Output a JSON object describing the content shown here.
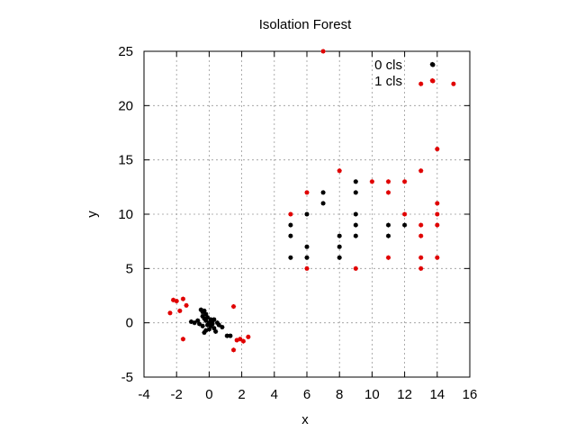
{
  "chart_data": {
    "type": "scatter",
    "title": "Isolation Forest",
    "xlabel": "x",
    "ylabel": "y",
    "xlim": [
      -4,
      16
    ],
    "ylim": [
      -5,
      25
    ],
    "xticks": [
      -4,
      -2,
      0,
      2,
      4,
      6,
      8,
      10,
      12,
      14,
      16
    ],
    "yticks": [
      -5,
      0,
      5,
      10,
      15,
      20,
      25
    ],
    "grid": true,
    "legend_position": "top-right",
    "series": [
      {
        "name": "0 cls",
        "color": "#000000",
        "points": [
          [
            -1.1,
            0.1
          ],
          [
            -0.9,
            0.0
          ],
          [
            -0.7,
            0.2
          ],
          [
            -0.6,
            -0.1
          ],
          [
            -0.5,
            1.2
          ],
          [
            -0.4,
            1.0
          ],
          [
            -0.4,
            0.6
          ],
          [
            -0.3,
            0.4
          ],
          [
            -0.3,
            1.1
          ],
          [
            -0.2,
            0.8
          ],
          [
            -0.2,
            0.2
          ],
          [
            -0.1,
            -0.2
          ],
          [
            -0.1,
            0.5
          ],
          [
            0.0,
            0.0
          ],
          [
            0.0,
            -0.6
          ],
          [
            0.1,
            0.3
          ],
          [
            0.1,
            -0.3
          ],
          [
            0.2,
            0.1
          ],
          [
            0.3,
            -0.5
          ],
          [
            0.3,
            0.3
          ],
          [
            0.4,
            -0.8
          ],
          [
            0.5,
            0.0
          ],
          [
            0.6,
            -0.2
          ],
          [
            0.8,
            -0.4
          ],
          [
            -0.2,
            -0.7
          ],
          [
            -0.4,
            -0.3
          ],
          [
            0.2,
            -0.1
          ],
          [
            1.1,
            -1.2
          ],
          [
            1.3,
            -1.2
          ],
          [
            -0.3,
            -0.9
          ],
          [
            5,
            6
          ],
          [
            5,
            8
          ],
          [
            5,
            9
          ],
          [
            6,
            6
          ],
          [
            6,
            7
          ],
          [
            6,
            10
          ],
          [
            7,
            11
          ],
          [
            7,
            12
          ],
          [
            8,
            6
          ],
          [
            8,
            7
          ],
          [
            8,
            8
          ],
          [
            9,
            8
          ],
          [
            9,
            9
          ],
          [
            9,
            10
          ],
          [
            9,
            12
          ],
          [
            9,
            13
          ],
          [
            11,
            8
          ],
          [
            11,
            9
          ],
          [
            12,
            9
          ],
          [
            13.7,
            23.8
          ]
        ]
      },
      {
        "name": "1 cls",
        "color": "#e00000",
        "points": [
          [
            -2.4,
            0.9
          ],
          [
            -2.2,
            2.1
          ],
          [
            -2.0,
            2.0
          ],
          [
            -1.8,
            1.1
          ],
          [
            -1.6,
            2.2
          ],
          [
            -1.4,
            1.6
          ],
          [
            -1.6,
            -1.5
          ],
          [
            1.5,
            1.5
          ],
          [
            1.5,
            -2.5
          ],
          [
            1.7,
            -1.6
          ],
          [
            1.9,
            -1.5
          ],
          [
            2.1,
            -1.7
          ],
          [
            2.4,
            -1.3
          ],
          [
            5,
            10
          ],
          [
            6,
            5
          ],
          [
            6,
            12
          ],
          [
            7,
            25
          ],
          [
            8,
            14
          ],
          [
            9,
            5
          ],
          [
            10,
            13
          ],
          [
            11,
            6
          ],
          [
            11,
            12
          ],
          [
            11,
            13
          ],
          [
            12,
            10
          ],
          [
            12,
            13
          ],
          [
            13,
            5
          ],
          [
            13,
            6
          ],
          [
            13,
            8
          ],
          [
            13,
            9
          ],
          [
            13,
            14
          ],
          [
            13,
            22
          ],
          [
            14,
            6
          ],
          [
            14,
            9
          ],
          [
            14,
            10
          ],
          [
            14,
            11
          ],
          [
            14,
            16
          ],
          [
            15,
            22
          ],
          [
            13.7,
            22.3
          ]
        ]
      }
    ]
  }
}
